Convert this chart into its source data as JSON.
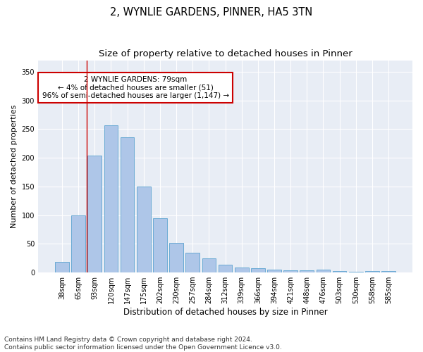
{
  "title1": "2, WYNLIE GARDENS, PINNER, HA5 3TN",
  "title2": "Size of property relative to detached houses in Pinner",
  "xlabel": "Distribution of detached houses by size in Pinner",
  "ylabel": "Number of detached properties",
  "categories": [
    "38sqm",
    "65sqm",
    "93sqm",
    "120sqm",
    "147sqm",
    "175sqm",
    "202sqm",
    "230sqm",
    "257sqm",
    "284sqm",
    "312sqm",
    "339sqm",
    "366sqm",
    "394sqm",
    "421sqm",
    "448sqm",
    "476sqm",
    "503sqm",
    "530sqm",
    "558sqm",
    "585sqm"
  ],
  "values": [
    18,
    100,
    204,
    257,
    236,
    150,
    95,
    52,
    35,
    25,
    14,
    9,
    7,
    5,
    4,
    4,
    5,
    2,
    1,
    3,
    3
  ],
  "bar_color": "#aec6e8",
  "bar_edge_color": "#6aaad4",
  "annotation_box_text": "2 WYNLIE GARDENS: 79sqm\n← 4% of detached houses are smaller (51)\n96% of semi-detached houses are larger (1,147) →",
  "annotation_box_color": "#ffffff",
  "annotation_box_edge_color": "#cc0000",
  "redline_x": 1.5,
  "ylim": [
    0,
    370
  ],
  "yticks": [
    0,
    50,
    100,
    150,
    200,
    250,
    300,
    350
  ],
  "background_color": "#e8edf5",
  "footnote": "Contains HM Land Registry data © Crown copyright and database right 2024.\nContains public sector information licensed under the Open Government Licence v3.0.",
  "title_fontsize": 10.5,
  "subtitle_fontsize": 9.5,
  "xlabel_fontsize": 8.5,
  "ylabel_fontsize": 8,
  "tick_fontsize": 7,
  "annot_fontsize": 7.5,
  "footnote_fontsize": 6.5
}
